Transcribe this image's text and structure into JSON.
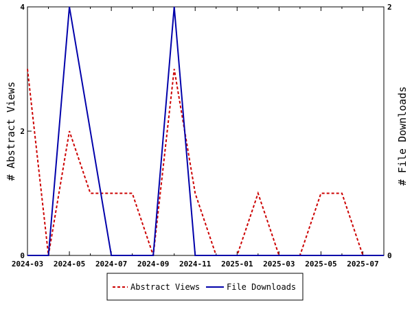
{
  "chart_data": {
    "type": "line",
    "x": [
      "2024-03",
      "2024-04",
      "2024-05",
      "2024-06",
      "2024-07",
      "2024-08",
      "2024-09",
      "2024-10",
      "2024-11",
      "2024-12",
      "2025-01",
      "2025-02",
      "2025-03",
      "2025-04",
      "2025-05",
      "2025-06",
      "2025-07",
      "2025-08"
    ],
    "x_tick_labels": [
      "2024-03",
      "2024-05",
      "2024-07",
      "2024-09",
      "2024-11",
      "2025-01",
      "2025-03",
      "2025-05",
      "2025-07"
    ],
    "ylabel": "# Abstract Views",
    "y2label": "# File Downloads",
    "ylim": [
      0,
      4
    ],
    "y2lim": [
      0,
      2
    ],
    "y_ticks": [
      "0",
      "2",
      "4"
    ],
    "y2_ticks": [
      "0",
      "2"
    ],
    "grid": false,
    "legend_position": "bottom",
    "series": [
      {
        "name": "Abstract Views",
        "axis": "left",
        "color": "#cc0000",
        "style": "dashed",
        "values": [
          3,
          0,
          2,
          1,
          1,
          1,
          0,
          3,
          1,
          0,
          0,
          1,
          0,
          0,
          1,
          1,
          0,
          0
        ]
      },
      {
        "name": "File Downloads",
        "axis": "right",
        "color": "#0000aa",
        "style": "solid",
        "values": [
          0,
          0,
          2,
          1,
          0,
          0,
          0,
          2,
          0,
          0,
          0,
          0,
          0,
          0,
          0,
          0,
          0,
          0
        ]
      }
    ]
  }
}
